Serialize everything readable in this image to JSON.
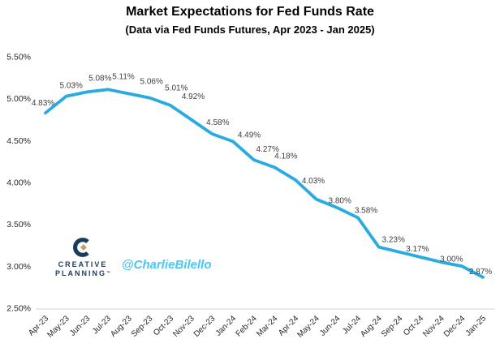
{
  "page": {
    "title": "Market Expectations for Fed Funds Rate",
    "subtitle": "(Data via Fed Funds Futures, Apr 2023 - Jan 2025)"
  },
  "branding": {
    "logo_line1": "CREATIVE",
    "logo_line2": "PLANNING",
    "logo_trademark": "™",
    "watermark": "@CharlieBilello"
  },
  "colors": {
    "background": "#FFFFFF",
    "line": "#29ABE2",
    "data_label_text": "#3F3F3F",
    "tick_text": "#262626",
    "axis_line": "#D9D9D9",
    "logo_navy": "#1C3C5E",
    "logo_gold": "#BDA06B",
    "watermark_blue": "#47C7F4"
  },
  "chart_data": {
    "type": "line",
    "title": "Market Expectations for Fed Funds Rate",
    "subtitle": "(Data via Fed Funds Futures, Apr 2023 - Jan 2025)",
    "x_categories": [
      "Apr-23",
      "May-23",
      "Jun-23",
      "Jul-23",
      "Aug-23",
      "Sep-23",
      "Oct-23",
      "Nov-23",
      "Dec-23",
      "Jan-24",
      "Feb-24",
      "Mar-24",
      "Apr-24",
      "May-24",
      "Jun-24",
      "Jul-24",
      "Aug-24",
      "Sep-24",
      "Oct-24",
      "Nov-24",
      "Dec-24",
      "Jan-25"
    ],
    "values": [
      4.83,
      5.03,
      5.08,
      5.11,
      5.06,
      5.01,
      4.92,
      4.75,
      4.58,
      4.49,
      4.27,
      4.18,
      4.03,
      3.8,
      3.7,
      3.58,
      3.23,
      3.17,
      3.11,
      3.05,
      3.0,
      2.87
    ],
    "point_labels": [
      "4.83%",
      "5.03%",
      "5.08%",
      "5.11%",
      "5.06%",
      "5.01%",
      "4.92%",
      "",
      "4.58%",
      "4.49%",
      "4.27%",
      "4.18%",
      "4.03%",
      "3.80%",
      "",
      "3.58%",
      "3.23%",
      "3.17%",
      "",
      "",
      "3.00%",
      "2.87%"
    ],
    "ylim": [
      2.5,
      5.5
    ],
    "y_ticks": [
      {
        "label": "5.50%",
        "value": 5.5
      },
      {
        "label": "5.00%",
        "value": 5.0
      },
      {
        "label": "4.50%",
        "value": 4.5
      },
      {
        "label": "4.00%",
        "value": 4.0
      },
      {
        "label": "3.50%",
        "value": 3.5
      },
      {
        "label": "3.00%",
        "value": 3.0
      },
      {
        "label": "2.50%",
        "value": 2.5
      }
    ],
    "legend": "none",
    "grid": "baseline-only",
    "x_tick_rotation_deg": 45
  }
}
